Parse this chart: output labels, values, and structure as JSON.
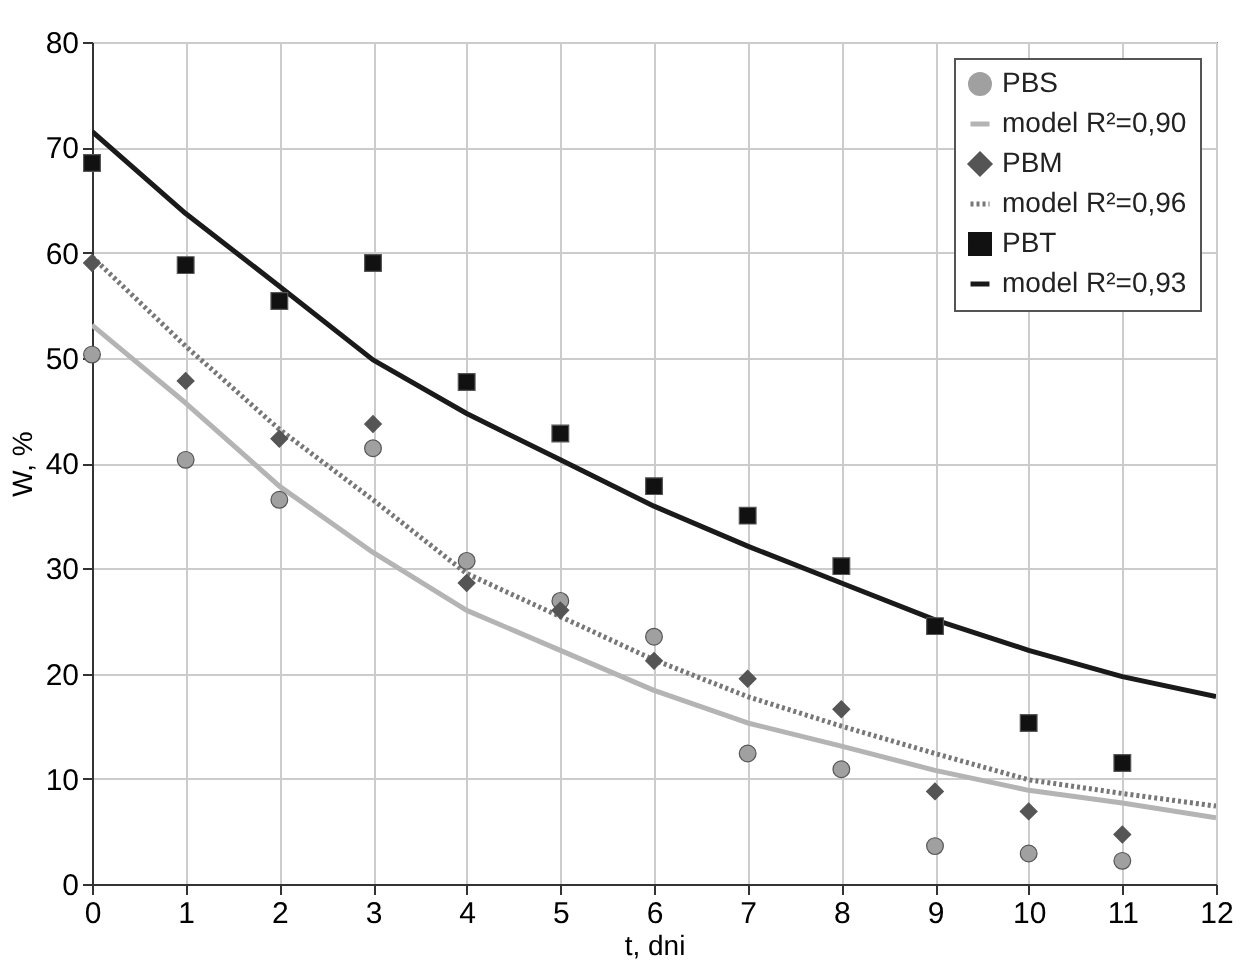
{
  "chart_data": {
    "type": "scatter",
    "xlabel": "t, dni",
    "ylabel": "W, %",
    "x": [
      0,
      1,
      2,
      3,
      4,
      5,
      6,
      7,
      8,
      9,
      10,
      11
    ],
    "series": [
      {
        "name": "PBS",
        "type": "scatter",
        "marker": "circle",
        "color": "#a0a0a0",
        "values": [
          50.3,
          40.3,
          36.5,
          41.4,
          30.7,
          26.9,
          23.5,
          12.4,
          10.9,
          3.6,
          2.9,
          2.2
        ]
      },
      {
        "name": "model R²=0,90",
        "type": "line",
        "marker": "none",
        "line_style": "solid",
        "color": "#b4b4b4",
        "x": [
          0,
          1,
          2,
          3,
          4,
          5,
          6,
          7,
          8,
          9,
          10,
          11,
          12
        ],
        "values": [
          53.1,
          45.7,
          37.8,
          31.5,
          26.0,
          22.2,
          18.4,
          15.3,
          13.1,
          10.8,
          8.9,
          7.7,
          6.3
        ]
      },
      {
        "name": "PBM",
        "type": "scatter",
        "marker": "diamond",
        "color": "#555555",
        "values": [
          59,
          47.8,
          42.3,
          43.7,
          28.6,
          26,
          21.2,
          19.5,
          16.6,
          8.8,
          6.9,
          4.7
        ]
      },
      {
        "name": "model R²=0,96",
        "type": "line",
        "marker": "none",
        "line_style": "dotted",
        "color": "#777777",
        "x": [
          0,
          1,
          2,
          3,
          4,
          5,
          6,
          7,
          8,
          9,
          10,
          11,
          12
        ],
        "values": [
          59.6,
          51.1,
          43.2,
          36.5,
          29.5,
          25.4,
          21.3,
          17.8,
          15.0,
          12.4,
          9.9,
          8.6,
          7.4
        ]
      },
      {
        "name": "PBT",
        "type": "scatter",
        "marker": "square",
        "color": "#111111",
        "values": [
          68.5,
          58.8,
          55.4,
          59,
          47.7,
          42.8,
          37.8,
          35,
          30.2,
          24.5,
          15.3,
          11.5
        ]
      },
      {
        "name": "model R²=0,93",
        "type": "line",
        "marker": "none",
        "line_style": "solid",
        "color": "#1a1a1a",
        "x": [
          0,
          1,
          2,
          3,
          4,
          5,
          6,
          7,
          8,
          9,
          10,
          11,
          12
        ],
        "values": [
          71.5,
          63.7,
          56.8,
          49.8,
          44.7,
          40.3,
          35.9,
          32.1,
          28.6,
          25.1,
          22.2,
          19.7,
          17.8
        ]
      }
    ],
    "xlim": [
      0,
      12
    ],
    "xticks": [
      0,
      1,
      2,
      3,
      4,
      5,
      6,
      7,
      8,
      9,
      10,
      11,
      12
    ],
    "ylim": [
      0,
      80
    ],
    "yticks": [
      0,
      10,
      20,
      30,
      40,
      50,
      60,
      70,
      80
    ],
    "grid": true,
    "legend": "top right"
  }
}
